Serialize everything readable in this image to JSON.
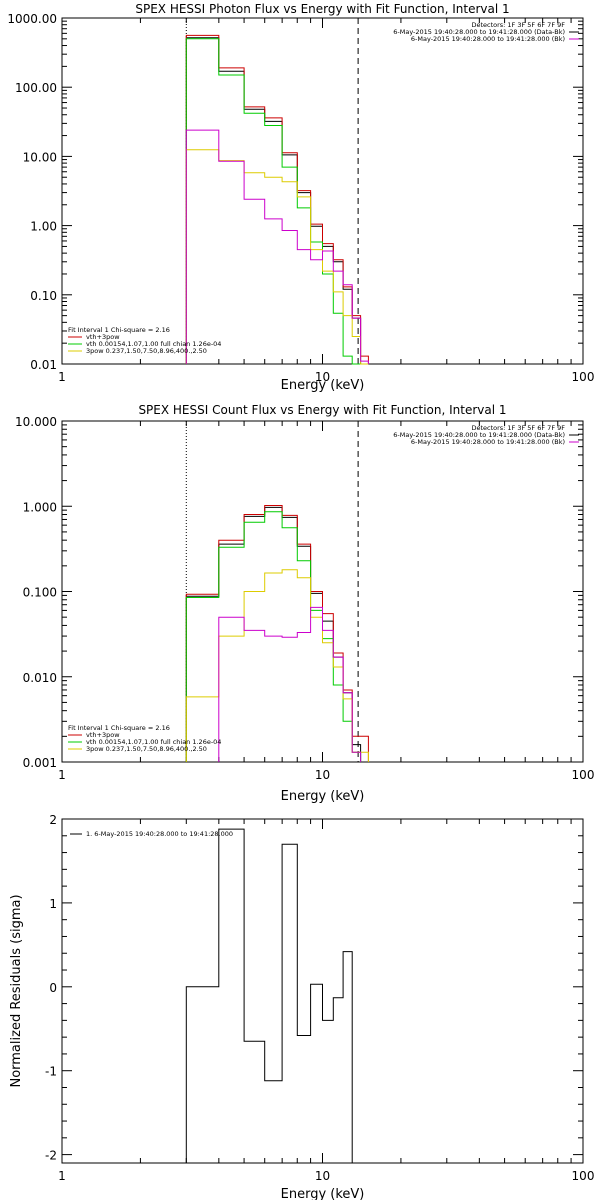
{
  "chart_data": [
    {
      "type": "line",
      "title": "SPEX HESSI Photon Flux vs Energy with Fit Function, Interval 1",
      "xlabel": "Energy (keV)",
      "ylabel": "",
      "xscale": "log",
      "yscale": "log",
      "xlim": [
        1,
        100
      ],
      "ylim": [
        0.01,
        1000
      ],
      "x_ticks": [
        "1",
        "10",
        "100"
      ],
      "y_ticks": [
        "0.01",
        "0.10",
        "1.00",
        "10.00",
        "100.00",
        "1000.00"
      ],
      "energy_edges": [
        3.0,
        4.0,
        5.0,
        6.0,
        7.0,
        8.0,
        9.0,
        10.0,
        11.0,
        12.0,
        13.0,
        14.0,
        15.0
      ],
      "vertical_lines": [
        {
          "x": 3.0,
          "style": "dotted"
        },
        {
          "x": 13.7,
          "style": "dashed"
        }
      ],
      "header_info": [
        {
          "text": "Detectors: 1F 3F 5F 6F 7F 9F",
          "color": "#000000"
        },
        {
          "text": "6-May-2015 19:40:28.000 to 19:41:28.000 (Data-Bk)",
          "color": "#000000"
        },
        {
          "text": "6-May-2015 19:40:28.000 to 19:41:28.000 (Bk)",
          "color": "#cc00cc"
        }
      ],
      "legend_title": "Fit Interval 1   Chi-square = 2.16",
      "series": [
        {
          "name": "",
          "color": "#000000",
          "values": [
            520,
            170,
            48,
            32,
            10.5,
            3.0,
            0.98,
            0.5,
            0.3,
            0.12,
            0.046,
            0.01
          ]
        },
        {
          "name": "vth+3pow",
          "color": "#cc0000",
          "values": [
            560,
            190,
            52,
            36,
            11.3,
            3.2,
            1.05,
            0.55,
            0.32,
            0.13,
            0.05,
            0.013
          ]
        },
        {
          "name": "vth 0.00154,1.07,1.00  full chian 1.26e-04",
          "color": "#00cc00",
          "values": [
            500,
            150,
            42,
            28,
            7.0,
            1.8,
            0.58,
            0.2,
            0.054,
            0.013,
            0.0056,
            null
          ]
        },
        {
          "name": "3pow 0.237,1.50,7.50,8.96,400.,2.50",
          "color": "#ddcc00",
          "values": [
            12.5,
            8.7,
            5.8,
            5.0,
            4.3,
            2.6,
            0.45,
            0.22,
            0.11,
            0.05,
            0.025,
            0.01
          ]
        },
        {
          "name": "",
          "color": "#cc00cc",
          "values": [
            24,
            8.5,
            2.4,
            1.25,
            0.85,
            0.45,
            0.32,
            0.43,
            0.22,
            0.14,
            0.046,
            0.011
          ]
        }
      ]
    },
    {
      "type": "line",
      "title": "SPEX HESSI Count Flux vs Energy with Fit Function, Interval 1",
      "xlabel": "Energy (keV)",
      "ylabel": "",
      "xscale": "log",
      "yscale": "log",
      "xlim": [
        1,
        100
      ],
      "ylim": [
        0.001,
        10
      ],
      "x_ticks": [
        "1",
        "10",
        "100"
      ],
      "y_ticks": [
        "0.001",
        "0.010",
        "0.100",
        "1.000",
        "10.000"
      ],
      "energy_edges": [
        3.0,
        4.0,
        5.0,
        6.0,
        7.0,
        8.0,
        9.0,
        10.0,
        11.0,
        12.0,
        13.0,
        14.0,
        15.0
      ],
      "vertical_lines": [
        {
          "x": 3.0,
          "style": "dotted"
        },
        {
          "x": 13.7,
          "style": "dashed"
        }
      ],
      "header_info": [
        {
          "text": "Detectors: 1F 3F 5F 6F 7F 9F",
          "color": "#000000"
        },
        {
          "text": "6-May-2015 19:40:28.000 to 19:41:28.000 (Data-Bk)",
          "color": "#000000"
        },
        {
          "text": "6-May-2015 19:40:28.000 to 19:41:28.000 (Bk)",
          "color": "#cc00cc"
        }
      ],
      "legend_title": "Fit Interval 1   Chi-square = 2.16",
      "series": [
        {
          "name": "",
          "color": "#000000",
          "values": [
            0.088,
            0.36,
            0.76,
            0.97,
            0.74,
            0.34,
            0.095,
            0.045,
            0.017,
            0.0065,
            0.0016,
            null
          ]
        },
        {
          "name": "vth+3pow",
          "color": "#cc0000",
          "values": [
            0.093,
            0.4,
            0.8,
            1.02,
            0.78,
            0.36,
            0.1,
            0.055,
            0.019,
            0.007,
            0.002,
            0.002
          ]
        },
        {
          "name": "vth 0.00154,1.07,1.00  full chian 1.26e-04",
          "color": "#00cc00",
          "values": [
            0.085,
            0.33,
            0.65,
            0.86,
            0.56,
            0.23,
            0.06,
            0.028,
            0.008,
            0.003,
            0.0013,
            null
          ]
        },
        {
          "name": "3pow 0.237,1.50,7.50,8.96,400.,2.50",
          "color": "#ddcc00",
          "values": [
            0.0058,
            0.03,
            0.1,
            0.165,
            0.18,
            0.145,
            0.05,
            0.025,
            0.013,
            0.0055,
            0.0013,
            0.0013
          ]
        },
        {
          "name": "",
          "color": "#cc00cc",
          "values": [
            null,
            0.05,
            0.035,
            0.03,
            0.029,
            0.033,
            0.065,
            0.035,
            0.017,
            0.0065,
            0.0013,
            null
          ]
        }
      ]
    },
    {
      "type": "line",
      "title": "",
      "xlabel": "Energy (keV)",
      "ylabel": "Normalized Residuals (sigma)",
      "xscale": "log",
      "yscale": "linear",
      "xlim": [
        1,
        100
      ],
      "ylim": [
        -2.1,
        2.0
      ],
      "x_ticks": [
        "1",
        "10",
        "100"
      ],
      "y_ticks": [
        "-2",
        "-1",
        "0",
        "1",
        "2"
      ],
      "energy_edges": [
        3.0,
        4.0,
        5.0,
        6.0,
        7.0,
        8.0,
        9.0,
        10.0,
        11.0,
        12.0,
        13.0,
        14.0
      ],
      "legend": [
        {
          "text": "1.  6-May-2015 19:40:28.000 to 19:41:28.000",
          "color": "#000000"
        }
      ],
      "series": [
        {
          "name": "1.  6-May-2015 19:40:28.000 to 19:41:28.000",
          "color": "#000000",
          "values": [
            0.0,
            1.88,
            -0.65,
            -1.12,
            1.7,
            -0.58,
            0.03,
            -0.4,
            -0.13,
            0.42,
            null
          ]
        }
      ]
    }
  ]
}
